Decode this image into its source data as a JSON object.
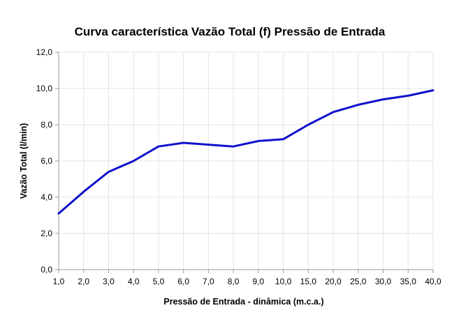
{
  "chart_data": {
    "type": "line",
    "title": "Curva característica Vazão Total (f) Pressão de Entrada",
    "xlabel": "Pressão de Entrada - dinâmica (m.c.a.)",
    "ylabel": "Vazão Total (l/min)",
    "categories": [
      "1,0",
      "2,0",
      "3,0",
      "4,0",
      "5,0",
      "6,0",
      "7,0",
      "8,0",
      "9,0",
      "10,0",
      "15,0",
      "20,0",
      "25,0",
      "30,0",
      "35,0",
      "40,0"
    ],
    "values": [
      3.1,
      4.3,
      5.4,
      6.0,
      6.8,
      7.0,
      6.9,
      6.8,
      7.1,
      7.2,
      8.0,
      8.7,
      9.1,
      9.4,
      9.6,
      9.9
    ],
    "ylim": [
      0,
      12
    ],
    "yticks": [
      0,
      2,
      4,
      6,
      8,
      10,
      12
    ],
    "ytick_labels": [
      "0,0",
      "2,0",
      "4,0",
      "6,0",
      "8,0",
      "10,0",
      "12,0"
    ],
    "grid": true,
    "legend": "none",
    "series_color": "#1010cc"
  }
}
